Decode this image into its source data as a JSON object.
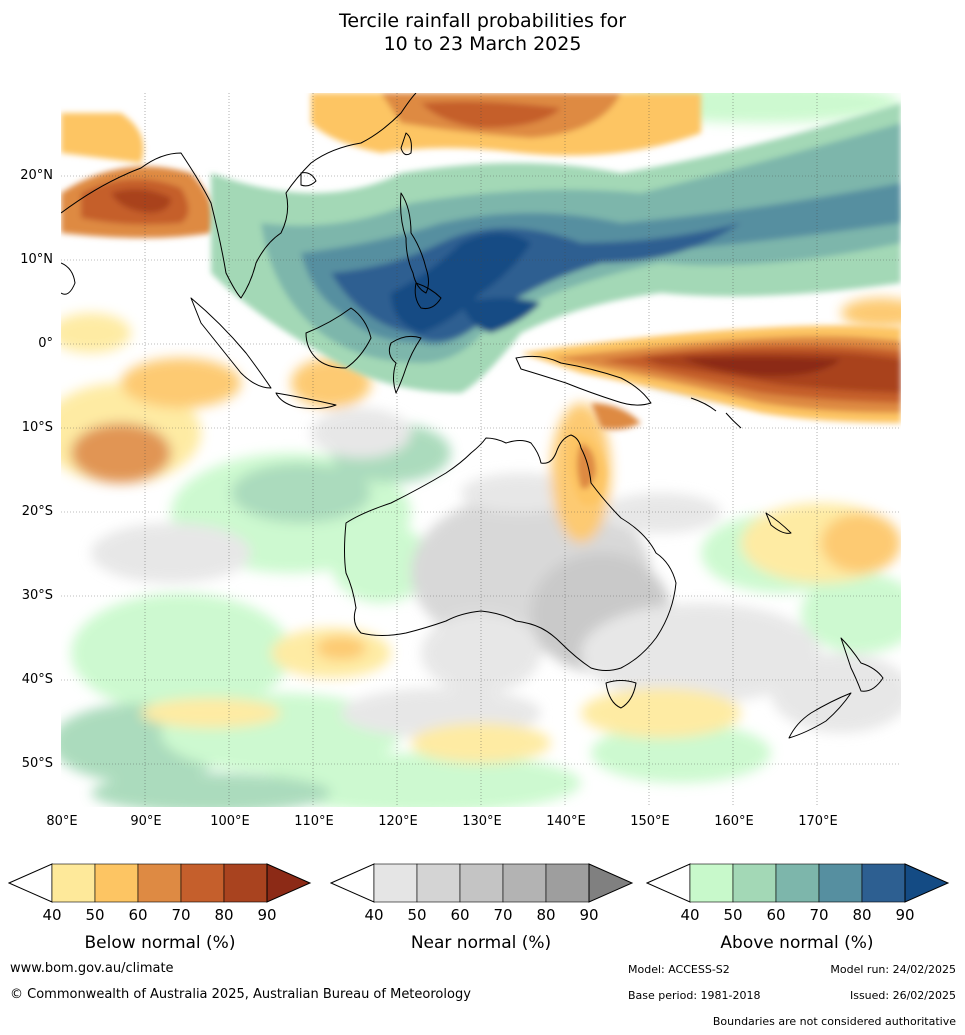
{
  "title": {
    "line1": "Tercile rainfall probabilities for",
    "line2": "10 to 23 March 2025"
  },
  "axes": {
    "lat_labels": [
      "20°N",
      "10°N",
      "0°",
      "10°S",
      "20°S",
      "30°S",
      "40°S",
      "50°S"
    ],
    "lon_labels": [
      "80°E",
      "90°E",
      "100°E",
      "110°E",
      "120°E",
      "130°E",
      "140°E",
      "150°E",
      "160°E",
      "170°E"
    ]
  },
  "legends": [
    {
      "title": "Below normal (%)",
      "ticks": [
        "40",
        "50",
        "60",
        "70",
        "80",
        "90"
      ],
      "colors": [
        "#ffffff",
        "#fee99a",
        "#fdc563",
        "#de8a43",
        "#c55f2c",
        "#a9431f",
        "#8c2a16"
      ]
    },
    {
      "title": "Near normal (%)",
      "ticks": [
        "40",
        "50",
        "60",
        "70",
        "80",
        "90"
      ],
      "colors": [
        "#ffffff",
        "#e5e5e5",
        "#d4d4d4",
        "#c4c4c4",
        "#b3b3b3",
        "#9e9e9e",
        "#808080"
      ]
    },
    {
      "title": "Above normal (%)",
      "ticks": [
        "40",
        "50",
        "60",
        "70",
        "80",
        "90"
      ],
      "colors": [
        "#ffffff",
        "#c8f9cb",
        "#a3d8b6",
        "#7db6ab",
        "#568fa0",
        "#2d5f91",
        "#144b84"
      ]
    }
  ],
  "footer": {
    "website": "www.bom.gov.au/climate",
    "copyright": "© Commonwealth of Australia 2025, Australian Bureau of Meteorology",
    "model": "Model: ACCESS-S2",
    "model_run": "Model run: 24/02/2025",
    "base_period": "Base period: 1981-2018",
    "issued": "Issued: 26/02/2025",
    "disclaimer": "Boundaries are not considered authoritative"
  }
}
